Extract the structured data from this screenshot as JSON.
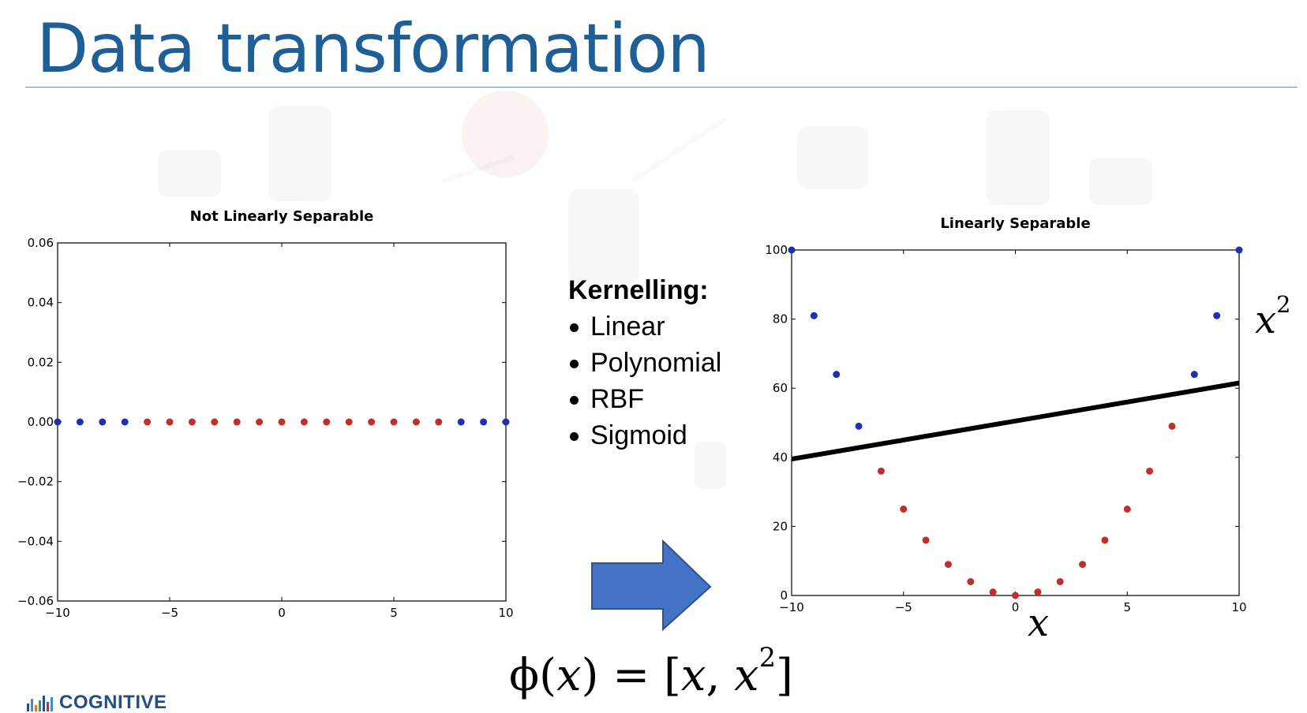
{
  "slide": {
    "title": "Data transformation"
  },
  "kernelling": {
    "heading": "Kernelling:",
    "items": [
      "Linear",
      "Polynomial",
      "RBF",
      "Sigmoid"
    ]
  },
  "math": {
    "x2_axis_label": "x",
    "x2_axis_exp": "2",
    "x_axis_label": "x",
    "phi_left": "ϕ(",
    "phi_arg": "x",
    "phi_mid": ") = [",
    "phi_x": "x",
    "phi_comma": ", ",
    "phi_x2": "x",
    "phi_exp": "2",
    "phi_right": "]"
  },
  "logo": {
    "text": "COGNITIVE"
  },
  "colors": {
    "title": "#1f5f98",
    "title_rule": "#6d93bf",
    "class_outer": "#1f2fb3",
    "class_inner": "#c0302a",
    "arrow_fill": "#4472c4",
    "arrow_stroke": "#2f528f",
    "separator_line": "#000000"
  },
  "chart_data": [
    {
      "type": "scatter",
      "title": "Not Linearly Separable",
      "xlim": [
        -10,
        10
      ],
      "ylim": [
        -0.06,
        0.06
      ],
      "x_ticks": [
        -10,
        -5,
        0,
        5,
        10
      ],
      "y_ticks": [
        -0.06,
        -0.04,
        -0.02,
        0.0,
        0.02,
        0.04,
        0.06
      ],
      "x_tick_labels": [
        "−10",
        "−5",
        "0",
        "5",
        "10"
      ],
      "y_tick_labels": [
        "−0.06",
        "−0.04",
        "−0.02",
        "0.00",
        "0.02",
        "0.04",
        "0.06"
      ],
      "series": [
        {
          "color": "#1f2fb3",
          "points": [
            [
              -10,
              0
            ],
            [
              -9,
              0
            ],
            [
              -8,
              0
            ],
            [
              -7,
              0
            ],
            [
              8,
              0
            ],
            [
              9,
              0
            ],
            [
              10,
              0
            ]
          ]
        },
        {
          "color": "#c0302a",
          "points": [
            [
              -6,
              0
            ],
            [
              -5,
              0
            ],
            [
              -4,
              0
            ],
            [
              -3,
              0
            ],
            [
              -2,
              0
            ],
            [
              -1,
              0
            ],
            [
              0,
              0
            ],
            [
              1,
              0
            ],
            [
              2,
              0
            ],
            [
              3,
              0
            ],
            [
              4,
              0
            ],
            [
              5,
              0
            ],
            [
              6,
              0
            ],
            [
              7,
              0
            ]
          ]
        }
      ]
    },
    {
      "type": "scatter",
      "title": "Linearly Separable",
      "xlim": [
        -10,
        10
      ],
      "ylim": [
        0,
        100
      ],
      "x_ticks": [
        -10,
        -5,
        0,
        5,
        10
      ],
      "y_ticks": [
        0,
        20,
        40,
        60,
        80,
        100
      ],
      "x_tick_labels": [
        "−10",
        "−5",
        "0",
        "5",
        "10"
      ],
      "y_tick_labels": [
        "0",
        "20",
        "40",
        "60",
        "80",
        "100"
      ],
      "series": [
        {
          "color": "#1f2fb3",
          "points": [
            [
              -10,
              100
            ],
            [
              -9,
              81
            ],
            [
              -8,
              64
            ],
            [
              -7,
              49
            ],
            [
              8,
              64
            ],
            [
              9,
              81
            ],
            [
              10,
              100
            ]
          ]
        },
        {
          "color": "#c0302a",
          "points": [
            [
              -6,
              36
            ],
            [
              -5,
              25
            ],
            [
              -4,
              16
            ],
            [
              -3,
              9
            ],
            [
              -2,
              4
            ],
            [
              -1,
              1
            ],
            [
              0,
              0
            ],
            [
              1,
              1
            ],
            [
              2,
              4
            ],
            [
              3,
              9
            ],
            [
              4,
              16
            ],
            [
              5,
              25
            ],
            [
              6,
              36
            ],
            [
              7,
              49
            ]
          ]
        }
      ],
      "separator_line": {
        "x": [
          -10,
          10
        ],
        "y": [
          39.5,
          61.5
        ]
      }
    }
  ]
}
